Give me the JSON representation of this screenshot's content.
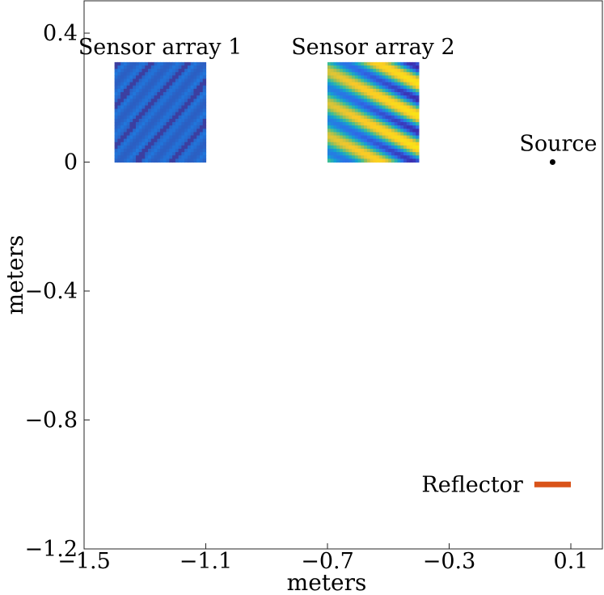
{
  "chart_data": {
    "type": "scatter",
    "title": "",
    "xlabel": "meters",
    "ylabel": "meters",
    "xlim": [
      -1.5,
      0.1
    ],
    "ylim": [
      -1.2,
      0.4
    ],
    "x_ticks": [
      {
        "value": -1.5,
        "label": "−1.5"
      },
      {
        "value": -1.1,
        "label": "−1.1"
      },
      {
        "value": -0.7,
        "label": "−0.7"
      },
      {
        "value": -0.3,
        "label": "−0.3"
      },
      {
        "value": 0.1,
        "label": "0.1"
      }
    ],
    "y_ticks": [
      {
        "value": 0.4,
        "label": "0.4"
      },
      {
        "value": 0,
        "label": "0"
      },
      {
        "value": -0.4,
        "label": "−0.4"
      },
      {
        "value": -0.8,
        "label": "−0.8"
      },
      {
        "value": -1.2,
        "label": "−1.2"
      }
    ],
    "sensor_arrays": [
      {
        "label": "Sensor array 1",
        "x_range": [
          -1.4,
          -1.1
        ],
        "y_range": [
          0,
          0.31
        ],
        "palette": "blue"
      },
      {
        "label": "Sensor array 2",
        "x_range": [
          -0.7,
          -0.4
        ],
        "y_range": [
          0,
          0.31
        ],
        "palette": "parula"
      }
    ],
    "source": {
      "label": "Source",
      "x": 0.04,
      "y": 0
    },
    "reflector": {
      "label": "Reflector",
      "x_range": [
        -0.02,
        0.1
      ],
      "y": -1.0,
      "color": "#d95319"
    },
    "colors": {
      "blue_low": "#3c3fa0",
      "blue_high": "#1f78dd",
      "yellow": "#fbd51a"
    },
    "grid": false
  }
}
